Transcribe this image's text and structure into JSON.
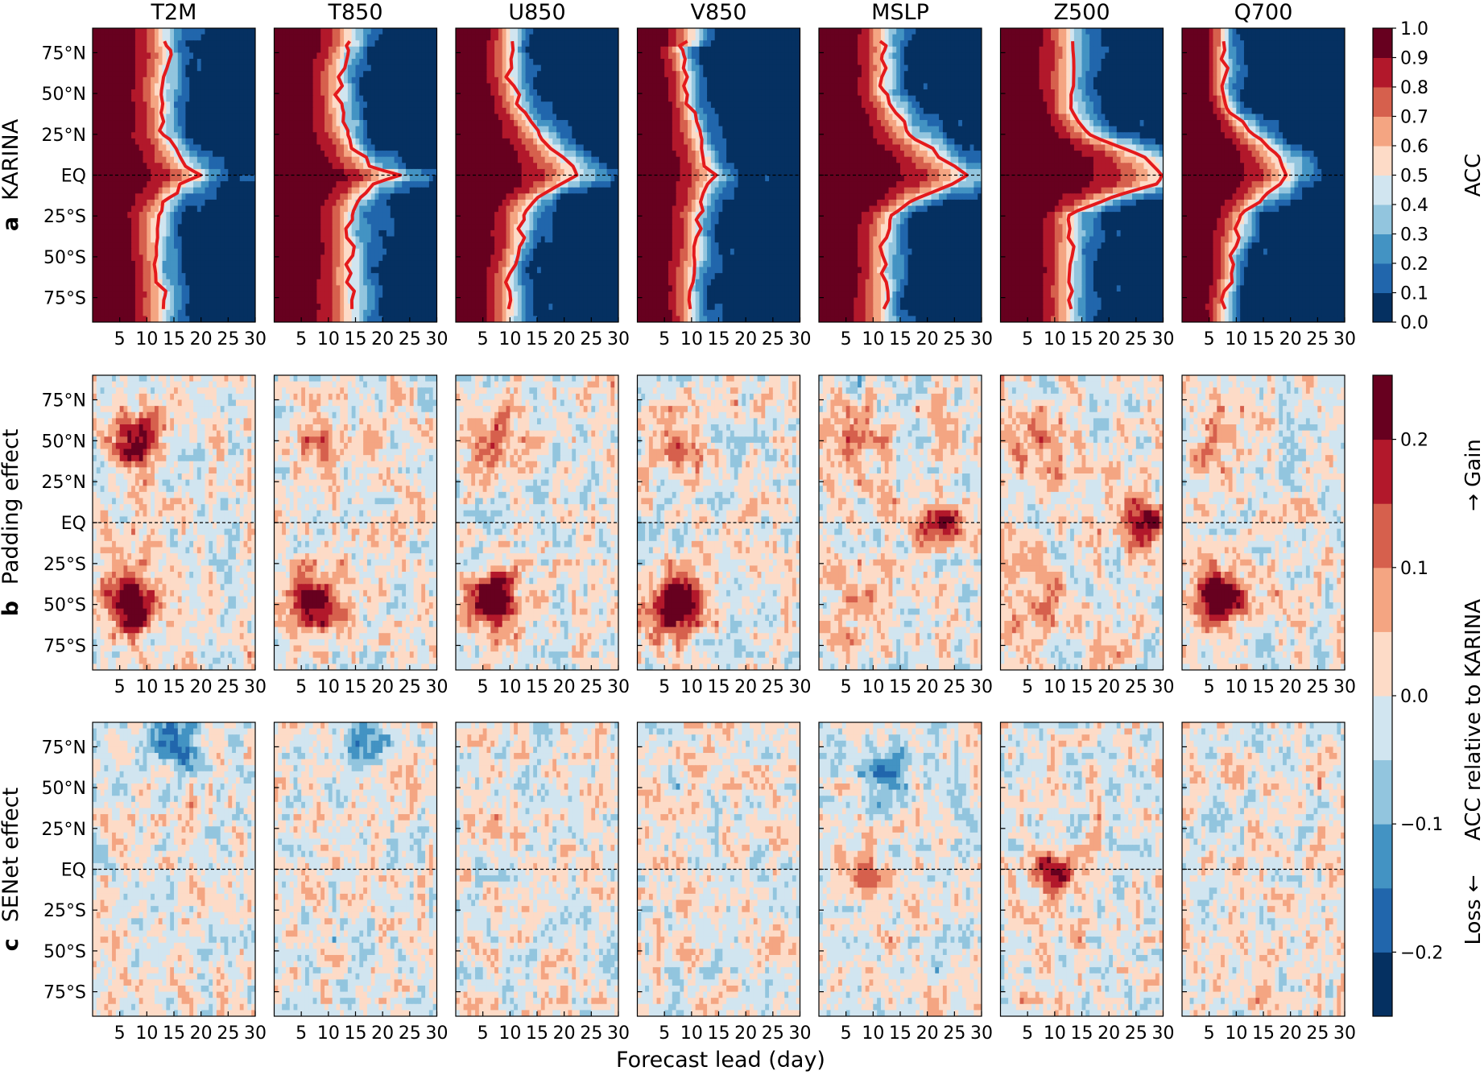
{
  "figure": {
    "variables": [
      "T2M",
      "T850",
      "U850",
      "V850",
      "MSLP",
      "Z500",
      "Q700"
    ],
    "x_label": "Forecast lead (day)",
    "x_ticks": [
      "5",
      "10",
      "15",
      "20",
      "25",
      "30"
    ],
    "y_ticks": [
      "75°N",
      "50°N",
      "25°N",
      "EQ",
      "25°S",
      "50°S",
      "75°S"
    ],
    "rows": [
      {
        "letter": "a",
        "label": "KARINA"
      },
      {
        "letter": "b",
        "label": "Padding effect"
      },
      {
        "letter": "c",
        "label": "SENet effect"
      }
    ],
    "colorbar_top": {
      "label": "ACC",
      "ticks": [
        "0.0",
        "0.1",
        "0.2",
        "0.3",
        "0.4",
        "0.5",
        "0.6",
        "0.7",
        "0.8",
        "0.9",
        "1.0"
      ]
    },
    "colorbar_bottom": {
      "label": "ACC relative to KARINA",
      "gain": "→ Gain",
      "loss": "Loss ←",
      "ticks": [
        "−0.2",
        "−0.1",
        "0.0",
        "0.1",
        "0.2"
      ]
    }
  },
  "chart_data": [
    {
      "type": "heatmap",
      "row": "KARINA",
      "x": "forecast lead (day)",
      "xlim": [
        0,
        30
      ],
      "y": "latitude",
      "ylim": [
        -90,
        90
      ],
      "color_range": [
        0,
        1
      ],
      "colormap": "RdBu_r",
      "contour_level": 0.5,
      "contour_color": "#e41a1c",
      "contour_lead_days": {
        "latitudes": [
          80,
          75,
          60,
          50,
          40,
          25,
          15,
          5,
          0,
          -5,
          -15,
          -25,
          -40,
          -50,
          -60,
          -75,
          -80
        ],
        "T2M": [
          13,
          14,
          13,
          12.5,
          13,
          13,
          15,
          17,
          20,
          17,
          14,
          12,
          12,
          12,
          12,
          13,
          13
        ],
        "T850": [
          13,
          13,
          12,
          12,
          12,
          13,
          15,
          18,
          23,
          19,
          15,
          14,
          14,
          14,
          14,
          14,
          14
        ],
        "U850": [
          10,
          10,
          10,
          11,
          12,
          15,
          18,
          21,
          22,
          20,
          14,
          12,
          12,
          11,
          10,
          10,
          10
        ],
        "V850": [
          8,
          8,
          9,
          9,
          10,
          11,
          12,
          13,
          14,
          13,
          12,
          11,
          11,
          11,
          10,
          10,
          10
        ],
        "MSLP": [
          13,
          12,
          12,
          12,
          14,
          17,
          21,
          25,
          27,
          25,
          18,
          13,
          12,
          12,
          12,
          12,
          12
        ],
        "Z500": [
          13,
          13,
          13,
          13,
          13,
          17,
          24,
          29,
          30,
          29,
          19,
          13,
          13,
          13,
          13,
          13,
          13
        ],
        "Q700": [
          8,
          8,
          8,
          8,
          9,
          13,
          17,
          19,
          20,
          18,
          14,
          11,
          10,
          9,
          9,
          8,
          8
        ]
      },
      "peak_acc_at_day_0": 1.0,
      "background_acc": 0.0
    },
    {
      "type": "heatmap",
      "row": "Padding effect",
      "x": "forecast lead (day)",
      "xlim": [
        0,
        30
      ],
      "y": "latitude",
      "ylim": [
        -90,
        90
      ],
      "color_range": [
        -0.25,
        0.25
      ],
      "colormap": "RdBu_r",
      "features": [
        {
          "panel": "T2M",
          "lat": -50,
          "day": 7,
          "value": 0.22
        },
        {
          "panel": "T2M",
          "lat": 50,
          "day": 8,
          "value": 0.15
        },
        {
          "panel": "T850",
          "lat": -50,
          "day": 7,
          "value": 0.2
        },
        {
          "panel": "U850",
          "lat": -45,
          "day": 6,
          "value": 0.2
        },
        {
          "panel": "V850",
          "lat": -50,
          "day": 7,
          "value": 0.22
        },
        {
          "panel": "MSLP",
          "lat": 0,
          "day": 22,
          "value": 0.2
        },
        {
          "panel": "Z500",
          "lat": 0,
          "day": 26,
          "value": 0.22
        },
        {
          "panel": "Q700",
          "lat": -45,
          "day": 7,
          "value": 0.18
        }
      ]
    },
    {
      "type": "heatmap",
      "row": "SENet effect",
      "x": "forecast lead (day)",
      "xlim": [
        0,
        30
      ],
      "y": "latitude",
      "ylim": [
        -90,
        90
      ],
      "color_range": [
        -0.25,
        0.25
      ],
      "colormap": "RdBu_r",
      "features": [
        {
          "panel": "Z500",
          "lat": -2,
          "day": 10,
          "value": 0.22
        },
        {
          "panel": "MSLP",
          "lat": 0,
          "day": 8,
          "value": 0.1
        },
        {
          "panel": "T2M",
          "lat": 78,
          "day": 15,
          "value": -0.15
        },
        {
          "panel": "T850",
          "lat": 78,
          "day": 17,
          "value": -0.15
        },
        {
          "panel": "MSLP",
          "lat": 62,
          "day": 12,
          "value": -0.12
        }
      ]
    }
  ]
}
